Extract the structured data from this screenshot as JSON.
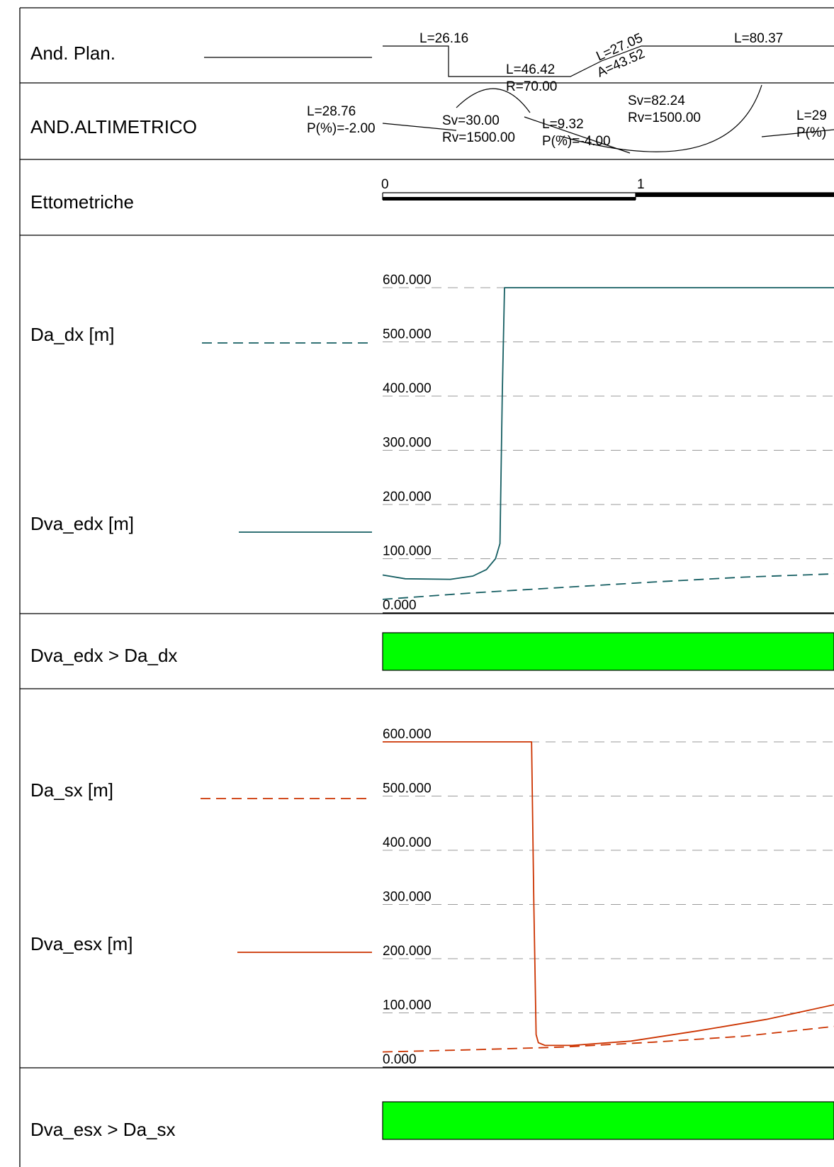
{
  "rows": {
    "plan": "And. Plan.",
    "altimetric": "AND.ALTIMETRICO",
    "ettometriche": "Ettometriche",
    "da_dx": "Da_dx [m]",
    "dva_edx": "Dva_edx [m]",
    "check_dx": "Dva_edx > Da_dx",
    "da_sx": "Da_sx [m]",
    "dva_esx": "Dva_esx [m]",
    "check_sx": "Dva_esx > Da_sx"
  },
  "plan": {
    "seg1": "L=26.16",
    "seg2": "L=46.42",
    "seg3": "R=70.00",
    "seg4_l": "L=27.05",
    "seg4_a": "A=43.52",
    "seg5": "L=80.37"
  },
  "altimetric": {
    "grade1_l": "L=28.76",
    "grade1_p": "P(%)=-2.00",
    "curve1_sv": "Sv=30.00",
    "curve1_rv": "Rv=1500.00",
    "grade2_l": "L=9.32",
    "grade2_p": "P(%)=-4.00",
    "curve2_sv": "Sv=82.24",
    "curve2_rv": "Rv=1500.00",
    "grade3_l": "L=29",
    "grade3_p": "P(%)"
  },
  "ettometriche": {
    "marks": [
      "0",
      "1"
    ]
  },
  "colors": {
    "right_series": "#155e62",
    "left_series": "#cc3300",
    "check_ok": "#00ff00",
    "grid": "#9a9a9a"
  },
  "chart_data": [
    {
      "type": "line",
      "ylim": [
        0,
        600
      ],
      "y_ticks": [
        "600.000",
        "500.000",
        "400.000",
        "300.000",
        "200.000",
        "100.000",
        "0.000"
      ],
      "grid": true,
      "series": [
        {
          "name": "Da_dx [m]",
          "style": "dashed",
          "x": [
            0,
            0.2,
            0.4,
            0.6,
            0.8,
            1.0
          ],
          "y": [
            25,
            37,
            47,
            57,
            66,
            72
          ]
        },
        {
          "name": "Dva_edx [m]",
          "style": "solid",
          "x": [
            0,
            0.05,
            0.15,
            0.2,
            0.23,
            0.25,
            0.26,
            0.265,
            0.27,
            0.4,
            0.6,
            0.8,
            1.0
          ],
          "y": [
            70,
            63,
            62,
            68,
            80,
            100,
            128,
            400,
            600,
            600,
            600,
            600,
            600
          ]
        }
      ]
    },
    {
      "type": "line",
      "ylim": [
        0,
        600
      ],
      "y_ticks": [
        "600.000",
        "500.000",
        "400.000",
        "300.000",
        "200.000",
        "100.000",
        "0.000"
      ],
      "grid": true,
      "series": [
        {
          "name": "Da_sx [m]",
          "style": "dashed",
          "x": [
            0,
            0.2,
            0.4,
            0.6,
            0.8,
            1.0
          ],
          "y": [
            28,
            32,
            37,
            46,
            57,
            75
          ]
        },
        {
          "name": "Dva_esx [m]",
          "style": "solid",
          "x": [
            0,
            0.3,
            0.33,
            0.335,
            0.34,
            0.345,
            0.36,
            0.42,
            0.55,
            0.7,
            0.85,
            1.0
          ],
          "y": [
            600,
            600,
            600,
            300,
            60,
            45,
            40,
            40,
            48,
            67,
            88,
            115
          ]
        }
      ]
    }
  ]
}
